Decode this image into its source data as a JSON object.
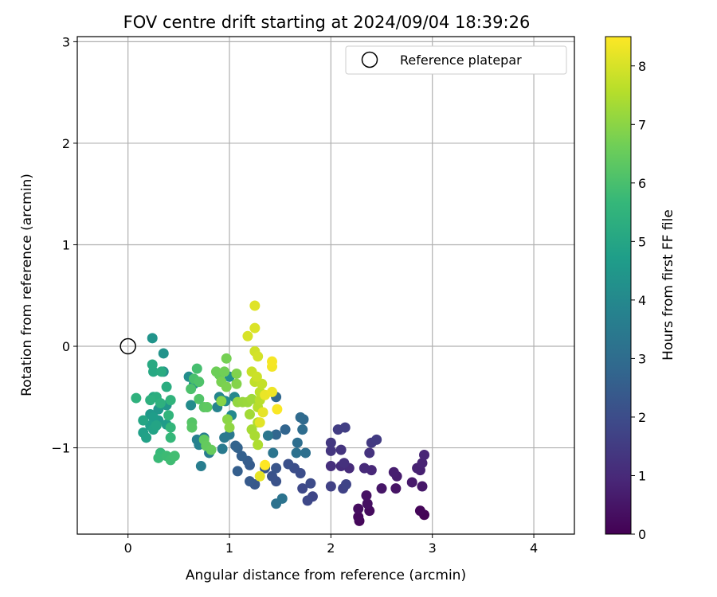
{
  "chart_data": {
    "type": "scatter",
    "title": "FOV centre drift starting at 2024/09/04 18:39:26",
    "xlabel": "Angular distance from reference (arcmin)",
    "ylabel": "Rotation from reference (arcmin)",
    "xlim": [
      -0.5,
      4.4
    ],
    "ylim": [
      -1.85,
      3.05
    ],
    "xticks": [
      0,
      1,
      2,
      3,
      4
    ],
    "yticks": [
      -1,
      0,
      1,
      2,
      3
    ],
    "grid": true,
    "legend": {
      "placement": "top-right",
      "entries": [
        "Reference platepar"
      ]
    },
    "reference_point": {
      "x": 0,
      "y": 0,
      "label": "Reference platepar"
    },
    "colorbar": {
      "label": "Hours from first FF file",
      "range": [
        0,
        8.5
      ],
      "ticks": [
        0,
        1,
        2,
        3,
        4,
        5,
        6,
        7,
        8
      ],
      "colormap": "viridis"
    },
    "colormap_colors": [
      "#440154",
      "#482878",
      "#3e4989",
      "#31688e",
      "#26828e",
      "#1f9e89",
      "#35b779",
      "#6ece58",
      "#b5de2b",
      "#fde725"
    ],
    "marker_color_reference": "#000000",
    "points": [
      {
        "x": 2.92,
        "y": -1.66,
        "c": 0.05
      },
      {
        "x": 2.88,
        "y": -1.62,
        "c": 0.1
      },
      {
        "x": 2.28,
        "y": -1.72,
        "c": 0.15
      },
      {
        "x": 2.27,
        "y": -1.68,
        "c": 0.2
      },
      {
        "x": 2.38,
        "y": -1.62,
        "c": 0.25
      },
      {
        "x": 2.27,
        "y": -1.6,
        "c": 0.3
      },
      {
        "x": 2.36,
        "y": -1.55,
        "c": 0.35
      },
      {
        "x": 2.35,
        "y": -1.47,
        "c": 0.4
      },
      {
        "x": 2.64,
        "y": -1.4,
        "c": 0.45
      },
      {
        "x": 2.5,
        "y": -1.4,
        "c": 0.5
      },
      {
        "x": 2.9,
        "y": -1.38,
        "c": 0.55
      },
      {
        "x": 2.8,
        "y": -1.34,
        "c": 0.6
      },
      {
        "x": 2.65,
        "y": -1.28,
        "c": 0.65
      },
      {
        "x": 2.62,
        "y": -1.24,
        "c": 0.7
      },
      {
        "x": 2.88,
        "y": -1.22,
        "c": 0.75
      },
      {
        "x": 2.85,
        "y": -1.2,
        "c": 0.8
      },
      {
        "x": 2.9,
        "y": -1.15,
        "c": 0.85
      },
      {
        "x": 2.92,
        "y": -1.07,
        "c": 0.9
      },
      {
        "x": 2.4,
        "y": -1.22,
        "c": 0.95
      },
      {
        "x": 2.33,
        "y": -1.2,
        "c": 1.0
      },
      {
        "x": 2.18,
        "y": -1.2,
        "c": 1.05
      },
      {
        "x": 2.1,
        "y": -1.18,
        "c": 1.1
      },
      {
        "x": 2.0,
        "y": -1.18,
        "c": 1.15
      },
      {
        "x": 2.13,
        "y": -1.15,
        "c": 1.2
      },
      {
        "x": 2.38,
        "y": -1.05,
        "c": 1.25
      },
      {
        "x": 2.1,
        "y": -1.02,
        "c": 1.3
      },
      {
        "x": 2.0,
        "y": -1.03,
        "c": 1.35
      },
      {
        "x": 2.0,
        "y": -0.95,
        "c": 1.4
      },
      {
        "x": 2.4,
        "y": -0.95,
        "c": 1.45
      },
      {
        "x": 2.45,
        "y": -0.92,
        "c": 1.5
      },
      {
        "x": 2.07,
        "y": -0.82,
        "c": 1.55
      },
      {
        "x": 2.14,
        "y": -0.8,
        "c": 1.6
      },
      {
        "x": 2.0,
        "y": -1.38,
        "c": 1.65
      },
      {
        "x": 2.12,
        "y": -1.4,
        "c": 1.7
      },
      {
        "x": 2.15,
        "y": -1.36,
        "c": 1.75
      },
      {
        "x": 1.82,
        "y": -1.48,
        "c": 1.8
      },
      {
        "x": 1.77,
        "y": -1.52,
        "c": 1.85
      },
      {
        "x": 1.72,
        "y": -1.4,
        "c": 1.9
      },
      {
        "x": 1.8,
        "y": -1.35,
        "c": 1.95
      },
      {
        "x": 1.7,
        "y": -1.25,
        "c": 2.0
      },
      {
        "x": 1.64,
        "y": -1.2,
        "c": 2.05
      },
      {
        "x": 1.58,
        "y": -1.16,
        "c": 2.1
      },
      {
        "x": 1.46,
        "y": -1.33,
        "c": 2.15
      },
      {
        "x": 1.42,
        "y": -1.28,
        "c": 2.2
      },
      {
        "x": 1.46,
        "y": -1.2,
        "c": 2.25
      },
      {
        "x": 1.35,
        "y": -1.2,
        "c": 2.3
      },
      {
        "x": 1.25,
        "y": -1.36,
        "c": 2.35
      },
      {
        "x": 1.2,
        "y": -1.33,
        "c": 2.4
      },
      {
        "x": 1.2,
        "y": -1.17,
        "c": 2.45
      },
      {
        "x": 1.18,
        "y": -1.13,
        "c": 2.5
      },
      {
        "x": 1.08,
        "y": -1.23,
        "c": 2.55
      },
      {
        "x": 1.12,
        "y": -1.08,
        "c": 2.6
      },
      {
        "x": 1.08,
        "y": -1.0,
        "c": 2.65
      },
      {
        "x": 1.06,
        "y": -0.98,
        "c": 2.7
      },
      {
        "x": 1.55,
        "y": -0.82,
        "c": 2.75
      },
      {
        "x": 1.46,
        "y": -0.87,
        "c": 2.8
      },
      {
        "x": 1.46,
        "y": -0.5,
        "c": 2.85
      },
      {
        "x": 1.73,
        "y": -0.72,
        "c": 2.9
      },
      {
        "x": 1.7,
        "y": -0.7,
        "c": 2.95
      },
      {
        "x": 1.72,
        "y": -0.82,
        "c": 3.0
      },
      {
        "x": 1.67,
        "y": -0.95,
        "c": 3.05
      },
      {
        "x": 1.75,
        "y": -1.05,
        "c": 3.1
      },
      {
        "x": 1.66,
        "y": -1.05,
        "c": 3.15
      },
      {
        "x": 1.46,
        "y": -1.55,
        "c": 3.2
      },
      {
        "x": 1.52,
        "y": -1.5,
        "c": 3.25
      },
      {
        "x": 1.43,
        "y": -1.05,
        "c": 3.3
      },
      {
        "x": 1.38,
        "y": -0.88,
        "c": 3.35
      },
      {
        "x": 1.0,
        "y": -0.87,
        "c": 3.4
      },
      {
        "x": 0.95,
        "y": -0.9,
        "c": 3.45
      },
      {
        "x": 0.93,
        "y": -1.01,
        "c": 3.5
      },
      {
        "x": 0.8,
        "y": -1.05,
        "c": 3.55
      },
      {
        "x": 0.72,
        "y": -1.18,
        "c": 3.6
      },
      {
        "x": 0.75,
        "y": -0.9,
        "c": 3.65
      },
      {
        "x": 0.68,
        "y": -0.92,
        "c": 3.7
      },
      {
        "x": 0.7,
        "y": -0.97,
        "c": 3.75
      },
      {
        "x": 0.88,
        "y": -0.6,
        "c": 3.8
      },
      {
        "x": 0.93,
        "y": -0.53,
        "c": 3.85
      },
      {
        "x": 0.9,
        "y": -0.5,
        "c": 3.9
      },
      {
        "x": 1.05,
        "y": -0.5,
        "c": 3.95
      },
      {
        "x": 1.02,
        "y": -0.68,
        "c": 4.0
      },
      {
        "x": 0.96,
        "y": -0.54,
        "c": 4.05
      },
      {
        "x": 0.62,
        "y": -0.58,
        "c": 4.1
      },
      {
        "x": 0.6,
        "y": -0.3,
        "c": 4.15
      },
      {
        "x": 0.65,
        "y": -0.37,
        "c": 4.2
      },
      {
        "x": 1.0,
        "y": -0.3,
        "c": 4.25
      },
      {
        "x": 0.35,
        "y": -0.25,
        "c": 4.3
      },
      {
        "x": 0.35,
        "y": -0.07,
        "c": 4.35
      },
      {
        "x": 0.24,
        "y": 0.08,
        "c": 4.4
      },
      {
        "x": 0.38,
        "y": -0.58,
        "c": 4.45
      },
      {
        "x": 0.3,
        "y": -0.62,
        "c": 4.5
      },
      {
        "x": 0.22,
        "y": -0.67,
        "c": 4.55
      },
      {
        "x": 0.3,
        "y": -0.73,
        "c": 4.6
      },
      {
        "x": 0.38,
        "y": -0.77,
        "c": 4.65
      },
      {
        "x": 0.25,
        "y": -0.7,
        "c": 4.7
      },
      {
        "x": 0.22,
        "y": -0.78,
        "c": 4.75
      },
      {
        "x": 0.15,
        "y": -0.85,
        "c": 4.8
      },
      {
        "x": 0.18,
        "y": -0.9,
        "c": 4.85
      },
      {
        "x": 0.25,
        "y": -0.82,
        "c": 4.9
      },
      {
        "x": 0.28,
        "y": -0.78,
        "c": 4.95
      },
      {
        "x": 0.15,
        "y": -0.73,
        "c": 5.0
      },
      {
        "x": 0.25,
        "y": -0.5,
        "c": 5.05
      },
      {
        "x": 0.25,
        "y": -0.25,
        "c": 5.1
      },
      {
        "x": 0.24,
        "y": -0.18,
        "c": 5.15
      },
      {
        "x": 0.33,
        "y": -0.25,
        "c": 5.2
      },
      {
        "x": 0.38,
        "y": -0.4,
        "c": 5.25
      },
      {
        "x": 0.28,
        "y": -0.5,
        "c": 5.3
      },
      {
        "x": 0.22,
        "y": -0.53,
        "c": 5.35
      },
      {
        "x": 0.32,
        "y": -0.56,
        "c": 5.4
      },
      {
        "x": 0.08,
        "y": -0.51,
        "c": 5.45
      },
      {
        "x": 0.42,
        "y": -0.53,
        "c": 5.5
      },
      {
        "x": 0.4,
        "y": -0.68,
        "c": 5.55
      },
      {
        "x": 0.42,
        "y": -0.8,
        "c": 5.6
      },
      {
        "x": 0.42,
        "y": -0.9,
        "c": 5.65
      },
      {
        "x": 0.32,
        "y": -1.05,
        "c": 5.7
      },
      {
        "x": 0.3,
        "y": -1.1,
        "c": 5.75
      },
      {
        "x": 0.38,
        "y": -1.08,
        "c": 5.8
      },
      {
        "x": 0.42,
        "y": -1.12,
        "c": 5.85
      },
      {
        "x": 0.46,
        "y": -1.08,
        "c": 5.9
      },
      {
        "x": 0.68,
        "y": -0.22,
        "c": 5.95
      },
      {
        "x": 0.65,
        "y": -0.32,
        "c": 6.0
      },
      {
        "x": 0.62,
        "y": -0.42,
        "c": 6.05
      },
      {
        "x": 0.7,
        "y": -0.35,
        "c": 6.1
      },
      {
        "x": 0.7,
        "y": -0.52,
        "c": 6.15
      },
      {
        "x": 0.63,
        "y": -0.75,
        "c": 6.2
      },
      {
        "x": 0.63,
        "y": -0.8,
        "c": 6.25
      },
      {
        "x": 0.75,
        "y": -0.6,
        "c": 6.3
      },
      {
        "x": 0.78,
        "y": -0.6,
        "c": 6.35
      },
      {
        "x": 0.75,
        "y": -0.92,
        "c": 6.4
      },
      {
        "x": 0.77,
        "y": -0.98,
        "c": 6.45
      },
      {
        "x": 0.82,
        "y": -1.02,
        "c": 6.5
      },
      {
        "x": 0.9,
        "y": -0.28,
        "c": 6.55
      },
      {
        "x": 0.87,
        "y": -0.25,
        "c": 6.6
      },
      {
        "x": 0.95,
        "y": -0.25,
        "c": 6.65
      },
      {
        "x": 0.97,
        "y": -0.12,
        "c": 6.7
      },
      {
        "x": 0.92,
        "y": -0.35,
        "c": 6.75
      },
      {
        "x": 0.97,
        "y": -0.4,
        "c": 6.8
      },
      {
        "x": 1.07,
        "y": -0.27,
        "c": 6.85
      },
      {
        "x": 1.07,
        "y": -0.37,
        "c": 6.9
      },
      {
        "x": 0.92,
        "y": -0.54,
        "c": 6.95
      },
      {
        "x": 0.98,
        "y": -0.72,
        "c": 7.0
      },
      {
        "x": 1.0,
        "y": -0.8,
        "c": 7.05
      },
      {
        "x": 1.08,
        "y": -0.55,
        "c": 7.1
      },
      {
        "x": 1.13,
        "y": -0.55,
        "c": 7.15
      },
      {
        "x": 1.18,
        "y": -0.55,
        "c": 7.2
      },
      {
        "x": 1.22,
        "y": -0.52,
        "c": 7.25
      },
      {
        "x": 1.2,
        "y": -0.67,
        "c": 7.3
      },
      {
        "x": 1.22,
        "y": -0.82,
        "c": 7.35
      },
      {
        "x": 1.25,
        "y": -0.88,
        "c": 7.4
      },
      {
        "x": 1.28,
        "y": -0.97,
        "c": 7.45
      },
      {
        "x": 1.28,
        "y": -0.75,
        "c": 7.5
      },
      {
        "x": 1.28,
        "y": -0.6,
        "c": 7.55
      },
      {
        "x": 1.3,
        "y": -0.53,
        "c": 7.6
      },
      {
        "x": 1.3,
        "y": -0.45,
        "c": 7.65
      },
      {
        "x": 1.25,
        "y": -0.35,
        "c": 7.7
      },
      {
        "x": 1.32,
        "y": -0.37,
        "c": 7.75
      },
      {
        "x": 1.22,
        "y": -0.25,
        "c": 7.8
      },
      {
        "x": 1.27,
        "y": -0.3,
        "c": 7.85
      },
      {
        "x": 1.25,
        "y": -0.05,
        "c": 7.9
      },
      {
        "x": 1.28,
        "y": -0.1,
        "c": 7.95
      },
      {
        "x": 1.18,
        "y": 0.1,
        "c": 8.0
      },
      {
        "x": 1.25,
        "y": 0.18,
        "c": 8.05
      },
      {
        "x": 1.25,
        "y": 0.4,
        "c": 8.1
      },
      {
        "x": 1.3,
        "y": -0.75,
        "c": 8.15
      },
      {
        "x": 1.33,
        "y": -0.65,
        "c": 8.2
      },
      {
        "x": 1.35,
        "y": -0.48,
        "c": 8.25
      },
      {
        "x": 1.42,
        "y": -0.45,
        "c": 8.3
      },
      {
        "x": 1.42,
        "y": -0.2,
        "c": 8.35
      },
      {
        "x": 1.42,
        "y": -0.15,
        "c": 8.4
      },
      {
        "x": 1.47,
        "y": -0.62,
        "c": 8.45
      },
      {
        "x": 1.35,
        "y": -1.17,
        "c": 8.5
      },
      {
        "x": 1.3,
        "y": -1.28,
        "c": 8.2
      }
    ]
  }
}
